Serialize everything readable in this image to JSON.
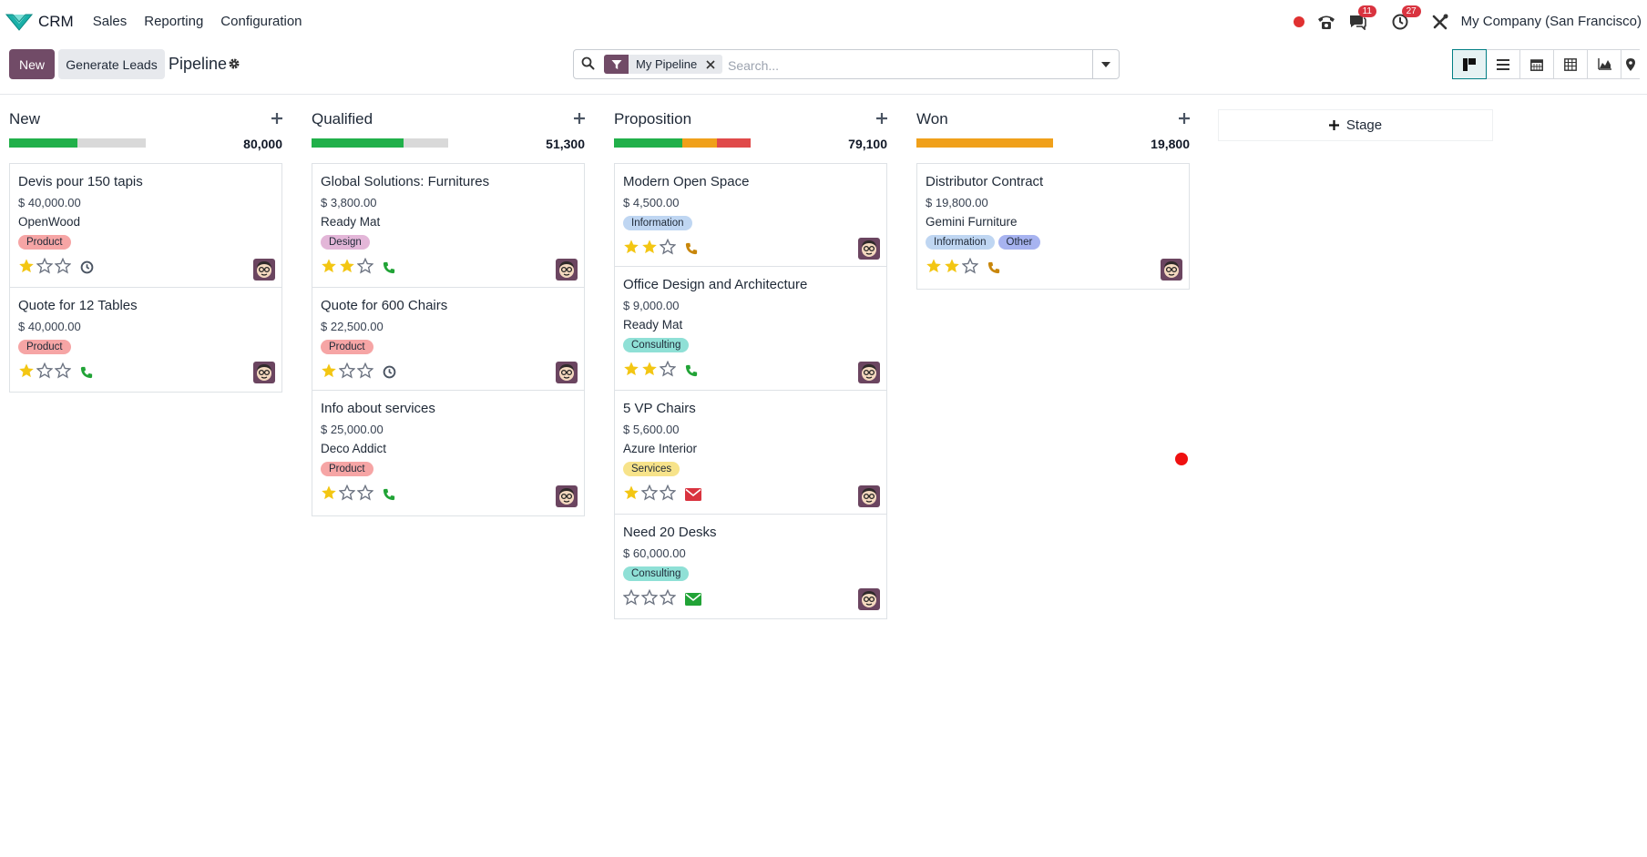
{
  "navbar": {
    "app_name": "CRM",
    "menu": [
      "Sales",
      "Reporting",
      "Configuration"
    ],
    "messages_count": "11",
    "activities_count": "27",
    "company": "My Company (San Francisco)"
  },
  "control": {
    "new_label": "New",
    "generate_label": "Generate Leads",
    "title": "Pipeline",
    "filter_facet": "My Pipeline",
    "search_placeholder": "Search..."
  },
  "colors": {
    "primary": "#714b67",
    "green": "#21b04a",
    "orange": "#f0a01a",
    "red": "#e04a4a",
    "gray": "#d9d9d9",
    "phone_green": "#21a336",
    "phone_orange": "#c8860a",
    "mail_red": "#d9333f",
    "mail_green": "#21a336"
  },
  "stages": [
    {
      "name": "New",
      "total": "80,000",
      "progress": {
        "green": 0.5,
        "orange": 0,
        "red": 0
      },
      "cards": [
        {
          "name": "Devis pour 150 tapis",
          "amount": "$ 40,000.00",
          "partner": "OpenWood",
          "tags": [
            {
              "label": "Product",
              "kind": "product"
            }
          ],
          "stars": 1,
          "activity": "clock-icon"
        },
        {
          "name": "Quote for 12 Tables",
          "amount": "$ 40,000.00",
          "partner": "",
          "tags": [
            {
              "label": "Product",
              "kind": "product"
            }
          ],
          "stars": 1,
          "activity": "phone-green-icon"
        }
      ]
    },
    {
      "name": "Qualified",
      "total": "51,300",
      "progress": {
        "green": 0.67,
        "orange": 0,
        "red": 0
      },
      "cards": [
        {
          "name": "Global Solutions: Furnitures",
          "amount": "$ 3,800.00",
          "partner": "Ready Mat",
          "tags": [
            {
              "label": "Design",
              "kind": "design"
            }
          ],
          "stars": 2,
          "activity": "phone-green-icon"
        },
        {
          "name": "Quote for 600 Chairs",
          "amount": "$ 22,500.00",
          "partner": "",
          "tags": [
            {
              "label": "Product",
              "kind": "product"
            }
          ],
          "stars": 1,
          "activity": "clock-icon"
        },
        {
          "name": "Info about services",
          "amount": "$ 25,000.00",
          "partner": "Deco Addict",
          "tags": [
            {
              "label": "Product",
              "kind": "product"
            }
          ],
          "stars": 1,
          "activity": "phone-green-icon"
        }
      ]
    },
    {
      "name": "Proposition",
      "total": "79,100",
      "progress": {
        "green": 0.5,
        "orange": 0.25,
        "red": 0.25
      },
      "cards": [
        {
          "name": "Modern Open Space",
          "amount": "$ 4,500.00",
          "partner": "",
          "tags": [
            {
              "label": "Information",
              "kind": "information"
            }
          ],
          "stars": 2,
          "activity": "phone-orange-icon"
        },
        {
          "name": "Office Design and Architecture",
          "amount": "$ 9,000.00",
          "partner": "Ready Mat",
          "tags": [
            {
              "label": "Consulting",
              "kind": "consulting"
            }
          ],
          "stars": 2,
          "activity": "phone-green-icon"
        },
        {
          "name": "5 VP Chairs",
          "amount": "$ 5,600.00",
          "partner": "Azure Interior",
          "tags": [
            {
              "label": "Services",
              "kind": "services"
            }
          ],
          "stars": 1,
          "activity": "envelope-red-icon"
        },
        {
          "name": "Need 20 Desks",
          "amount": "$ 60,000.00",
          "partner": "",
          "tags": [
            {
              "label": "Consulting",
              "kind": "consulting"
            }
          ],
          "stars": 0,
          "activity": "envelope-green-icon"
        }
      ]
    },
    {
      "name": "Won",
      "total": "19,800",
      "progress": {
        "green": 0,
        "orange": 1,
        "red": 0
      },
      "cards": [
        {
          "name": "Distributor Contract",
          "amount": "$ 19,800.00",
          "partner": "Gemini Furniture",
          "tags": [
            {
              "label": "Information",
              "kind": "information"
            },
            {
              "label": "Other",
              "kind": "other"
            }
          ],
          "stars": 2,
          "activity": "phone-orange-icon"
        }
      ]
    }
  ],
  "add_stage_label": "Stage"
}
